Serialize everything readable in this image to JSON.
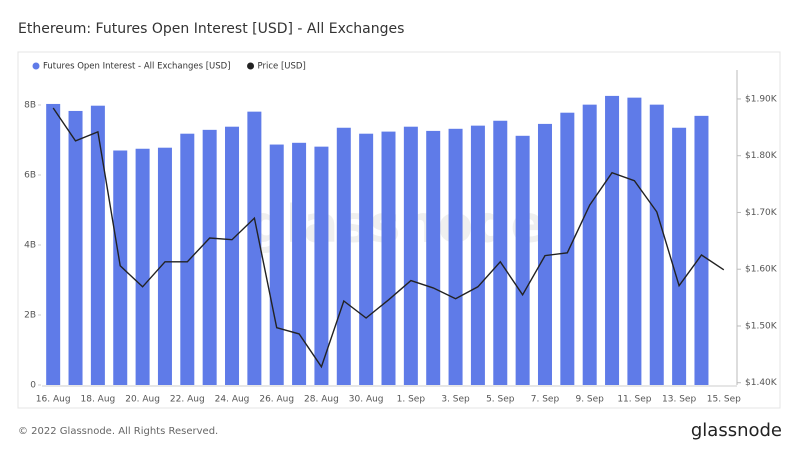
{
  "chart_data": {
    "type": "bar_line",
    "title": "Ethereum: Futures Open Interest [USD] - All Exchanges",
    "watermark": "glassnode",
    "footer": "© 2022 Glassnode. All Rights Reserved.",
    "brand": "glassnode",
    "categories": [
      "16. Aug",
      null,
      "18. Aug",
      null,
      "20. Aug",
      null,
      "22. Aug",
      null,
      "24. Aug",
      null,
      "26. Aug",
      null,
      "28. Aug",
      null,
      "30. Aug",
      null,
      "1. Sep",
      null,
      "3. Sep",
      null,
      "5. Sep",
      null,
      "7. Sep",
      null,
      "9. Sep",
      null,
      "11. Sep",
      null,
      "13. Sep",
      null,
      "15. Sep"
    ],
    "series": [
      {
        "name": "Futures Open Interest - All Exchanges [USD]",
        "color": "#5f7be8",
        "kind": "bar",
        "axis": "y",
        "values": [
          8030000000.0,
          7830000000.0,
          7980000000.0,
          6700000000.0,
          6750000000.0,
          6780000000.0,
          7180000000.0,
          7290000000.0,
          7380000000.0,
          7810000000.0,
          6870000000.0,
          6920000000.0,
          6810000000.0,
          7350000000.0,
          7180000000.0,
          7240000000.0,
          7380000000.0,
          7260000000.0,
          7320000000.0,
          7410000000.0,
          7550000000.0,
          7120000000.0,
          7460000000.0,
          7780000000.0,
          8010000000.0,
          8260000000.0,
          8210000000.0,
          8010000000.0,
          7350000000.0,
          7690000000.0,
          null
        ]
      },
      {
        "name": "Price [USD]",
        "color": "#222222",
        "kind": "line",
        "axis": "y2",
        "values": [
          1884,
          1826,
          1842,
          1606,
          1569,
          1613,
          1613,
          1655,
          1652,
          1690,
          1497,
          1486,
          1428,
          1544,
          1514,
          1546,
          1580,
          1567,
          1548,
          1569,
          1613,
          1555,
          1624,
          1629,
          1713,
          1770,
          1756,
          1701,
          1571,
          1625,
          1599
        ]
      }
    ],
    "ylim": [
      0,
      9000000000.0
    ],
    "yticks": [
      0,
      {
        "value": 2000000000.0,
        "label": "2B"
      },
      {
        "value": 4000000000.0,
        "label": "4B"
      },
      {
        "value": 6000000000.0,
        "label": "6B"
      },
      {
        "value": 8000000000.0,
        "label": "8B"
      }
    ],
    "y2lim": [
      1396,
      1951
    ],
    "y2ticks": [
      {
        "value": 1400,
        "label": "$1.40K"
      },
      {
        "value": 1500,
        "label": "$1.50K"
      },
      {
        "value": 1600,
        "label": "$1.60K"
      },
      {
        "value": 1700,
        "label": "$1.70K"
      },
      {
        "value": 1800,
        "label": "$1.80K"
      },
      {
        "value": 1900,
        "label": "$1.90K"
      }
    ],
    "grid": false
  }
}
